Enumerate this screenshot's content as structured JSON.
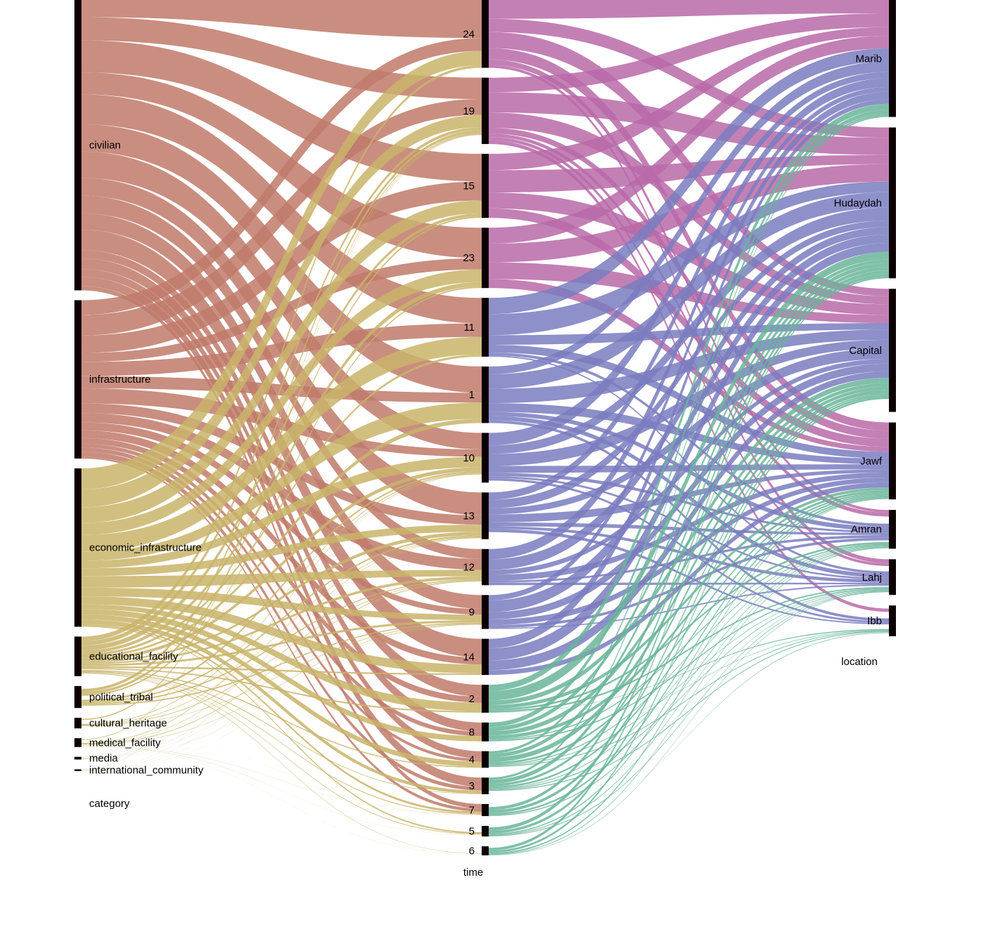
{
  "chart_data": {
    "type": "parallel-sets",
    "axes": [
      {
        "name": "category",
        "categories": [
          "civilian",
          "infrastructure",
          "economic_infrastructure",
          "educational_facility",
          "political_tribal",
          "cultural_heritage",
          "medical_facility",
          "media",
          "international_community"
        ],
        "shares": [
          0.33,
          0.18,
          0.18,
          0.045,
          0.025,
          0.012,
          0.01,
          0.003,
          0.002
        ]
      },
      {
        "name": "time",
        "categories": [
          "24",
          "19",
          "15",
          "23",
          "11",
          "1",
          "10",
          "13",
          "12",
          "9",
          "14",
          "2",
          "8",
          "4",
          "3",
          "7",
          "5",
          "6"
        ],
        "shares": [
          0.09,
          0.088,
          0.085,
          0.08,
          0.078,
          0.075,
          0.066,
          0.062,
          0.048,
          0.045,
          0.048,
          0.037,
          0.025,
          0.022,
          0.022,
          0.016,
          0.014,
          0.012
        ]
      },
      {
        "name": "location",
        "categories": [
          "Marib",
          "Hudaydah",
          "Capital",
          "Jawf",
          "Amran",
          "Lahj",
          "Ibb"
        ],
        "shares": [
          0.19,
          0.245,
          0.2,
          0.125,
          0.063,
          0.058,
          0.05
        ]
      }
    ],
    "series_colors": {
      "civilian": "#c07a6a",
      "infrastructure": "#c07a6a",
      "economic_infrastructure": "#c9b46a",
      "other": "#c9b46a",
      "location_top": "#b86aa8",
      "location_mid": "#7a7cc0",
      "location_low": "#6ab59a"
    }
  }
}
